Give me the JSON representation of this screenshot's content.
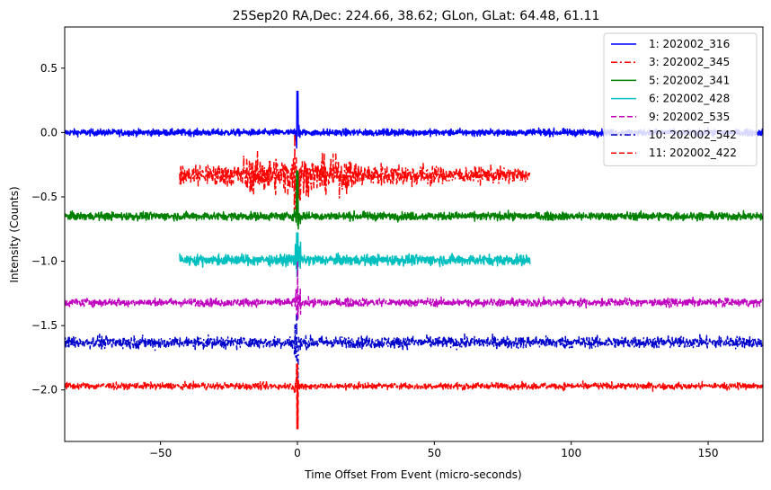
{
  "chart_data": {
    "type": "line",
    "title": "25Sep20 RA,Dec:  224.66,  38.62; GLon, GLat:   64.48,  61.11",
    "xlabel": "Time Offset From Event (micro-seconds)",
    "ylabel": "Intensity (Counts)",
    "xlim": [
      -85,
      170
    ],
    "ylim": [
      -2.4,
      0.82
    ],
    "xticks": [
      -50,
      0,
      50,
      100,
      150
    ],
    "yticks": [
      0.5,
      0.0,
      -0.5,
      -1.0,
      -1.5,
      -2.0
    ],
    "xtick_labels": [
      "−50",
      "0",
      "50",
      "100",
      "150"
    ],
    "ytick_labels": [
      "0.5",
      "0.0",
      "−0.5",
      "−1.0",
      "−1.5",
      "−2.0"
    ],
    "legend_position": "top-right",
    "series": [
      {
        "name": "1: 202002_316",
        "color": "#0000ff",
        "dash": "solid",
        "baseline": 0.0,
        "x_range": [
          -85,
          170
        ],
        "noise": 0.025,
        "spike": [
          0.32,
          -0.12
        ]
      },
      {
        "name": "3: 202002_345",
        "color": "#ff0000",
        "dash": "dashdot",
        "baseline": -0.33,
        "x_range": [
          -43,
          85
        ],
        "noise": 0.06,
        "spike": [
          0.12,
          -0.62
        ]
      },
      {
        "name": "5: 202002_341",
        "color": "#008000",
        "dash": "solid",
        "baseline": -0.65,
        "x_range": [
          -85,
          170
        ],
        "noise": 0.03,
        "spike": [
          -0.3,
          -0.72
        ]
      },
      {
        "name": "6: 202002_428",
        "color": "#00bfbf",
        "dash": "solid",
        "baseline": -0.99,
        "x_range": [
          -43,
          85
        ],
        "noise": 0.04,
        "spike": [
          -0.78,
          -1.12
        ]
      },
      {
        "name": "9: 202002_535",
        "color": "#bf00bf",
        "dash": "dashed",
        "baseline": -1.32,
        "x_range": [
          -85,
          170
        ],
        "noise": 0.03,
        "spike": [
          -1.0,
          -1.45
        ]
      },
      {
        "name": "10: 202002_542",
        "color": "#0000cc",
        "dash": "dashdot",
        "baseline": -1.63,
        "x_range": [
          -85,
          170
        ],
        "noise": 0.045,
        "spike": [
          -1.42,
          -1.92
        ]
      },
      {
        "name": "11: 202002_422",
        "color": "#ff0000",
        "dash": "dashed",
        "baseline": -1.97,
        "x_range": [
          -85,
          170
        ],
        "noise": 0.025,
        "spike": [
          -1.8,
          -2.3
        ]
      }
    ]
  }
}
